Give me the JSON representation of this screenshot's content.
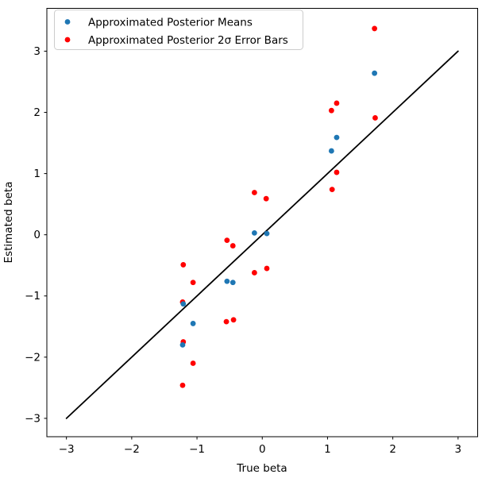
{
  "chart_data": {
    "type": "scatter",
    "title": "",
    "xlabel": "True beta",
    "ylabel": "Estimated beta",
    "xlim": [
      -3.3,
      3.3
    ],
    "ylim": [
      -3.3,
      3.7
    ],
    "xticks": [
      -3,
      -2,
      -1,
      0,
      1,
      2,
      3
    ],
    "xtick_labels": [
      "−3",
      "−2",
      "−1",
      "0",
      "1",
      "2",
      "3"
    ],
    "yticks": [
      -3,
      -2,
      -1,
      0,
      1,
      2,
      3
    ],
    "ytick_labels": [
      "−3",
      "−2",
      "−1",
      "0",
      "1",
      "2",
      "3"
    ],
    "grid": false,
    "legend": {
      "position": "upper left",
      "entries": [
        {
          "label": "Approximated Posterior Means",
          "color": "#1f77b4",
          "marker": "dot"
        },
        {
          "label": "Approximated Posterior 2σ Error Bars",
          "color": "#ff0000",
          "marker": "dot"
        }
      ]
    },
    "reference_line": {
      "type": "identity",
      "x": [
        -3,
        3
      ],
      "y": [
        -3,
        3
      ],
      "color": "#000000"
    },
    "series": [
      {
        "name": "Approximated Posterior Means",
        "color": "#1f77b4",
        "points": [
          {
            "x": 1.72,
            "y": 2.64
          },
          {
            "x": 1.14,
            "y": 1.59
          },
          {
            "x": 1.06,
            "y": 1.37
          },
          {
            "x": -0.12,
            "y": 0.03
          },
          {
            "x": 0.07,
            "y": 0.02
          },
          {
            "x": -0.54,
            "y": -0.76
          },
          {
            "x": -0.45,
            "y": -0.78
          },
          {
            "x": -1.21,
            "y": -1.13
          },
          {
            "x": -1.22,
            "y": -1.8
          },
          {
            "x": -1.06,
            "y": -1.45
          }
        ]
      },
      {
        "name": "Approximated Posterior 2σ Error Bars",
        "color": "#ff0000",
        "points": [
          {
            "x": 1.72,
            "y": 3.37
          },
          {
            "x": 1.73,
            "y": 1.91
          },
          {
            "x": 1.14,
            "y": 2.15
          },
          {
            "x": 1.14,
            "y": 1.02
          },
          {
            "x": 1.06,
            "y": 2.03
          },
          {
            "x": 1.07,
            "y": 0.74
          },
          {
            "x": -0.12,
            "y": 0.69
          },
          {
            "x": -0.12,
            "y": -0.62
          },
          {
            "x": 0.06,
            "y": 0.59
          },
          {
            "x": 0.07,
            "y": -0.55
          },
          {
            "x": -0.54,
            "y": -0.09
          },
          {
            "x": -0.55,
            "y": -1.42
          },
          {
            "x": -0.45,
            "y": -0.18
          },
          {
            "x": -0.44,
            "y": -1.39
          },
          {
            "x": -1.21,
            "y": -0.49
          },
          {
            "x": -1.21,
            "y": -1.75
          },
          {
            "x": -1.22,
            "y": -1.1
          },
          {
            "x": -1.22,
            "y": -2.46
          },
          {
            "x": -1.06,
            "y": -0.78
          },
          {
            "x": -1.06,
            "y": -2.1
          }
        ]
      }
    ]
  }
}
